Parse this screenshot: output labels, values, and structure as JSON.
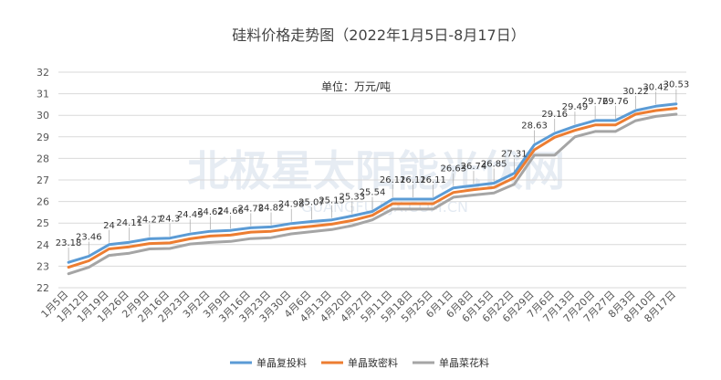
{
  "watermark": {
    "main": "北极星太阳能光伏网",
    "sub": "GUANGFU.BJX.COM.CN"
  },
  "chart_data": {
    "type": "line",
    "title": "硅料价格走势图（2022年1月5日-8月17日）",
    "annotation": "单位：万元/吨",
    "ylim": [
      22,
      32
    ],
    "yticks": [
      22,
      23,
      24,
      25,
      26,
      27,
      28,
      29,
      30,
      31,
      32
    ],
    "grid": true,
    "legend_position": "bottom",
    "categories": [
      "1月5日",
      "1月12日",
      "1月19日",
      "1月26日",
      "2月9日",
      "2月16日",
      "2月23日",
      "3月2日",
      "3月9日",
      "3月16日",
      "3月23日",
      "3月30日",
      "4月6日",
      "4月13日",
      "4月20日",
      "4月27日",
      "5月11日",
      "5月18日",
      "5月25日",
      "6月1日",
      "6月8日",
      "6月15日",
      "6月22日",
      "6月29日",
      "7月6日",
      "7月13日",
      "7月20日",
      "7月27日",
      "8月3日",
      "8月10日",
      "8月17日"
    ],
    "series": [
      {
        "name": "单晶复投料",
        "color": "#5b9bd5",
        "values": [
          23.18,
          23.46,
          24,
          24.11,
          24.27,
          24.3,
          24.49,
          24.62,
          24.66,
          24.78,
          24.82,
          24.98,
          25.07,
          25.15,
          25.33,
          25.54,
          26.11,
          26.11,
          26.11,
          26.63,
          26.74,
          26.85,
          27.31,
          28.63,
          29.16,
          29.49,
          29.76,
          29.76,
          30.22,
          30.42,
          30.53
        ],
        "labels": [
          "23.18",
          "23.46",
          "24",
          "24.11",
          "24.27",
          "24.3",
          "24.49",
          "24.62",
          "24.66",
          "24.78",
          "24.82",
          "24.98",
          "25.07",
          "25.15",
          "25.33",
          "25.54",
          "26.11",
          "26.11",
          "26.11",
          "26.63",
          "26.74",
          "26.85",
          "27.31",
          "28.63",
          "29.16",
          "29.49",
          "29.76",
          "29.76",
          "30.22",
          "30.42",
          "30.53"
        ]
      },
      {
        "name": "单晶致密料",
        "color": "#ed7d31",
        "values": [
          22.95,
          23.25,
          23.8,
          23.9,
          24.05,
          24.08,
          24.27,
          24.4,
          24.44,
          24.58,
          24.62,
          24.76,
          24.85,
          24.95,
          25.12,
          25.36,
          25.9,
          25.9,
          25.9,
          26.42,
          26.55,
          26.65,
          27.1,
          28.4,
          28.98,
          29.3,
          29.55,
          29.55,
          30.05,
          30.22,
          30.32
        ]
      },
      {
        "name": "单晶菜花料",
        "color": "#a5a5a5",
        "values": [
          22.65,
          22.95,
          23.5,
          23.6,
          23.8,
          23.82,
          24.03,
          24.1,
          24.15,
          24.28,
          24.32,
          24.5,
          24.6,
          24.7,
          24.88,
          25.15,
          25.65,
          25.65,
          25.65,
          26.2,
          26.3,
          26.4,
          26.8,
          28.15,
          28.15,
          29,
          29.25,
          29.25,
          29.75,
          29.95,
          30.05
        ]
      }
    ]
  }
}
